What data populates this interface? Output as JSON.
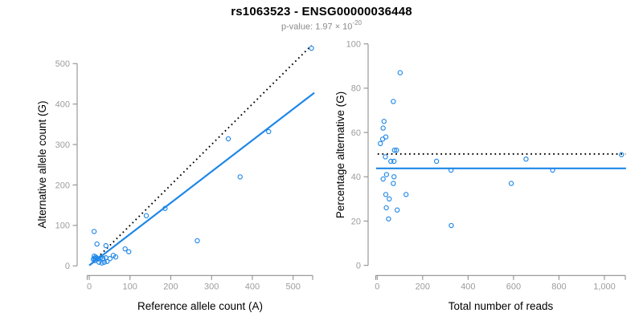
{
  "header": {
    "title": "rs1063523 - ENSG00000036448",
    "pvalue_label": "p-value: ",
    "pvalue_mantissa": "1.97",
    "pvalue_times": " × 10",
    "pvalue_exponent": "-20"
  },
  "colors": {
    "accent_blue": "#1e87e8",
    "reference_black": "#000000",
    "axis_line": "#8f8f8f",
    "tick_label": "#9c9c9c",
    "axis_title": "#000000",
    "subtitle_gray": "#8a8a8a",
    "background": "#ffffff"
  },
  "chart_data": [
    {
      "type": "scatter",
      "name": "allele-counts",
      "xlabel": "Reference allele count (A)",
      "ylabel": "Alternative allele count (G)",
      "xlim": [
        0,
        560
      ],
      "ylim": [
        0,
        560
      ],
      "xticks": [
        0,
        100,
        200,
        300,
        400,
        500
      ],
      "xtick_labels": [
        "0",
        "100",
        "200",
        "300",
        "400",
        "500"
      ],
      "yticks": [
        0,
        100,
        200,
        300,
        400,
        500
      ],
      "ytick_labels": [
        "0",
        "100",
        "200",
        "300",
        "400",
        "500"
      ],
      "grid": false,
      "points": [
        [
          545,
          538
        ],
        [
          440,
          332
        ],
        [
          370,
          220
        ],
        [
          341,
          314
        ],
        [
          265,
          62
        ],
        [
          186,
          142
        ],
        [
          140,
          124
        ],
        [
          97,
          35
        ],
        [
          88,
          42
        ],
        [
          65,
          22
        ],
        [
          59,
          26
        ],
        [
          41,
          50
        ],
        [
          19,
          54
        ],
        [
          12,
          85
        ],
        [
          12,
          24
        ],
        [
          16,
          22
        ],
        [
          13,
          19
        ],
        [
          18,
          19
        ],
        [
          22,
          17
        ],
        [
          28,
          20
        ],
        [
          34,
          18
        ],
        [
          41,
          20
        ],
        [
          51,
          18
        ],
        [
          24,
          9
        ],
        [
          31,
          7
        ],
        [
          37,
          9
        ],
        [
          44,
          11
        ],
        [
          10,
          16
        ],
        [
          14,
          13
        ]
      ],
      "fit_line": {
        "style": "solid",
        "x1": 0,
        "y1": 1,
        "x2": 552,
        "y2": 428
      },
      "reference_line": {
        "style": "dotted",
        "x1": 4,
        "y1": 4,
        "x2": 545,
        "y2": 545
      }
    },
    {
      "type": "scatter",
      "name": "percentage-vs-coverage",
      "xlabel": "Total number of reads",
      "ylabel": "Percentage alternative (G)",
      "xlim": [
        0,
        1100
      ],
      "ylim": [
        0,
        100
      ],
      "xticks": [
        0,
        200,
        400,
        600,
        800,
        1000
      ],
      "xtick_labels": [
        "0",
        "200",
        "400",
        "600",
        "800",
        "1,000"
      ],
      "yticks": [
        0,
        20,
        40,
        60,
        80,
        100
      ],
      "ytick_labels": [
        "0",
        "20",
        "40",
        "60",
        "80",
        "100"
      ],
      "grid": false,
      "points": [
        [
          1075,
          50
        ],
        [
          772,
          43
        ],
        [
          655,
          48
        ],
        [
          590,
          37
        ],
        [
          326,
          18
        ],
        [
          325,
          43
        ],
        [
          261,
          47
        ],
        [
          127,
          32
        ],
        [
          101,
          87
        ],
        [
          88,
          25
        ],
        [
          71,
          74
        ],
        [
          76,
          52
        ],
        [
          85,
          52
        ],
        [
          60,
          47
        ],
        [
          74,
          47
        ],
        [
          74,
          40
        ],
        [
          71,
          37
        ],
        [
          53,
          30
        ],
        [
          50,
          21
        ],
        [
          41,
          41
        ],
        [
          40,
          26
        ],
        [
          38,
          58
        ],
        [
          38,
          32
        ],
        [
          36,
          49
        ],
        [
          30,
          65
        ],
        [
          26,
          62
        ],
        [
          26,
          39
        ],
        [
          24,
          57
        ],
        [
          14,
          55
        ]
      ],
      "fit_line": {
        "style": "solid",
        "x1": -5,
        "y1": 43.8,
        "x2": 1095,
        "y2": 43.8
      },
      "reference_line": {
        "style": "dotted",
        "x1": 2,
        "y1": 50.3,
        "x2": 1093,
        "y2": 50.3
      }
    }
  ]
}
